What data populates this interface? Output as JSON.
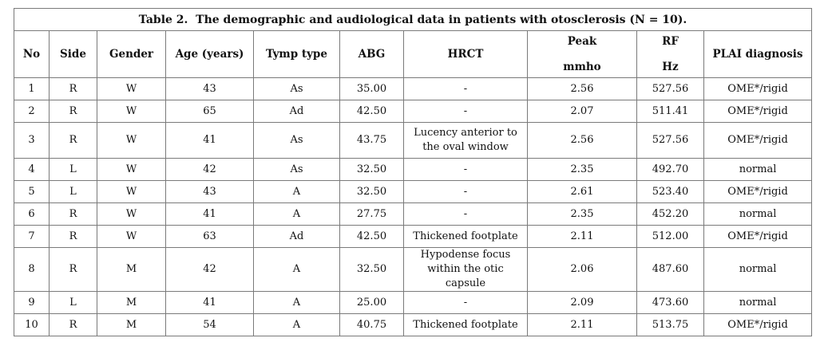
{
  "caption": {
    "label": "Table 2.",
    "text": "The demographic and audiological data in patients with otosclerosis (N = 10)."
  },
  "columns": {
    "no": "No",
    "side": "Side",
    "gender": "Gender",
    "age": "Age (years)",
    "tymp": "Tymp type",
    "abg": "ABG",
    "hrct": "HRCT",
    "peak": "Peak",
    "peak_unit": "mmho",
    "rf": "RF",
    "rf_unit": "Hz",
    "plai": "PLAI diagnosis"
  },
  "rows": [
    {
      "no": "1",
      "side": "R",
      "gender": "W",
      "age": "43",
      "tymp": "As",
      "abg": "35.00",
      "hrct": "-",
      "hrct2": "",
      "peak": "2.56",
      "rf": "527.56",
      "plai": "OME*/rigid"
    },
    {
      "no": "2",
      "side": "R",
      "gender": "W",
      "age": "65",
      "tymp": "Ad",
      "abg": "42.50",
      "hrct": "-",
      "hrct2": "",
      "peak": "2.07",
      "rf": "511.41",
      "plai": "OME*/rigid"
    },
    {
      "no": "3",
      "side": "R",
      "gender": "W",
      "age": "41",
      "tymp": "As",
      "abg": "43.75",
      "hrct": "Lucency anterior to",
      "hrct2": "the oval window",
      "peak": "2.56",
      "rf": "527.56",
      "plai": "OME*/rigid"
    },
    {
      "no": "4",
      "side": "L",
      "gender": "W",
      "age": "42",
      "tymp": "As",
      "abg": "32.50",
      "hrct": "-",
      "hrct2": "",
      "peak": "2.35",
      "rf": "492.70",
      "plai": "normal"
    },
    {
      "no": "5",
      "side": "L",
      "gender": "W",
      "age": "43",
      "tymp": "A",
      "abg": "32.50",
      "hrct": "-",
      "hrct2": "",
      "peak": "2.61",
      "rf": "523.40",
      "plai": "OME*/rigid"
    },
    {
      "no": "6",
      "side": "R",
      "gender": "W",
      "age": "41",
      "tymp": "A",
      "abg": "27.75",
      "hrct": "-",
      "hrct2": "",
      "peak": "2.35",
      "rf": "452.20",
      "plai": "normal"
    },
    {
      "no": "7",
      "side": "R",
      "gender": "W",
      "age": "63",
      "tymp": "Ad",
      "abg": "42.50",
      "hrct": "Thickened footplate",
      "hrct2": "",
      "peak": "2.11",
      "rf": "512.00",
      "plai": "OME*/rigid"
    },
    {
      "no": "8",
      "side": "R",
      "gender": "M",
      "age": "42",
      "tymp": "A",
      "abg": "32.50",
      "hrct": "Hypodense focus",
      "hrct2": "within the otic capsule",
      "peak": "2.06",
      "rf": "487.60",
      "plai": "normal"
    },
    {
      "no": "9",
      "side": "L",
      "gender": "M",
      "age": "41",
      "tymp": "A",
      "abg": "25.00",
      "hrct": "-",
      "hrct2": "",
      "peak": "2.09",
      "rf": "473.60",
      "plai": "normal"
    },
    {
      "no": "10",
      "side": "R",
      "gender": "M",
      "age": "54",
      "tymp": "A",
      "abg": "40.75",
      "hrct": "Thickened footplate",
      "hrct2": "",
      "peak": "2.11",
      "rf": "513.75",
      "plai": "OME*/rigid"
    }
  ]
}
